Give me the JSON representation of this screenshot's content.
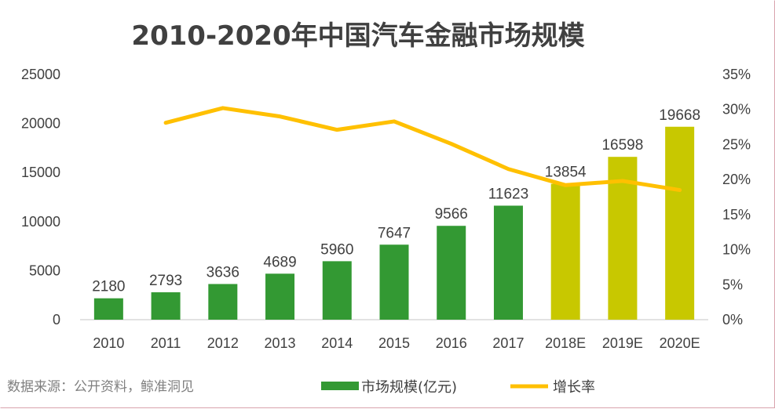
{
  "chart_data": {
    "type": "bar",
    "title": "2010-2020年中国汽车金融市场规模",
    "categories": [
      "2010",
      "2011",
      "2012",
      "2013",
      "2014",
      "2015",
      "2016",
      "2017",
      "2018E",
      "2019E",
      "2020E"
    ],
    "series": [
      {
        "name": "市场规模(亿元)",
        "type": "bar",
        "axis": "left",
        "values": [
          2180,
          2793,
          3636,
          4689,
          5960,
          7647,
          9566,
          11623,
          13854,
          16598,
          19668
        ],
        "color": "#339933",
        "estimate_color": "#c8c800",
        "estimate_from_index": 8
      },
      {
        "name": "增长率",
        "type": "line",
        "axis": "right",
        "values": [
          null,
          28.1,
          30.2,
          29.0,
          27.1,
          28.3,
          25.1,
          21.5,
          19.2,
          19.8,
          18.5
        ],
        "color": "#ffc000"
      }
    ],
    "y_left": {
      "ylim": [
        0,
        25000
      ],
      "ticks": [
        "0",
        "5000",
        "10000",
        "15000",
        "20000",
        "25000"
      ]
    },
    "y_right": {
      "ylim": [
        0,
        35
      ],
      "ticks": [
        "0%",
        "5%",
        "10%",
        "15%",
        "20%",
        "25%",
        "30%",
        "35%"
      ]
    },
    "grid": false,
    "legend_position": "bottom"
  },
  "source": "数据来源：公开资料，鲸准洞见"
}
